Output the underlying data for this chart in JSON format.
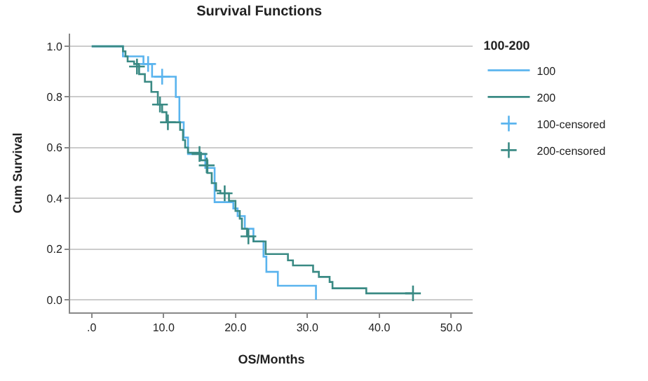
{
  "chart_data": {
    "type": "step",
    "title": "Survival Functions",
    "xlabel": "OS/Months",
    "ylabel": "Cum Survival",
    "legend_title": "100-200",
    "legend": "right",
    "grid": "y",
    "xlim": [
      -3,
      53
    ],
    "ylim": [
      -0.05,
      1.05
    ],
    "xticks": [
      {
        "value": 0,
        "label": ".0"
      },
      {
        "value": 10,
        "label": "10.0"
      },
      {
        "value": 20,
        "label": "20.0"
      },
      {
        "value": 30,
        "label": "30.0"
      },
      {
        "value": 40,
        "label": "40.0"
      },
      {
        "value": 50,
        "label": "50.0"
      }
    ],
    "yticks": [
      {
        "value": 0,
        "label": "0.0"
      },
      {
        "value": 0.2,
        "label": "0.2"
      },
      {
        "value": 0.4,
        "label": "0.4"
      },
      {
        "value": 0.6,
        "label": "0.6"
      },
      {
        "value": 0.8,
        "label": "0.8"
      },
      {
        "value": 1,
        "label": "1.0"
      }
    ],
    "series": [
      {
        "name": "100",
        "color": "#5ab4ee",
        "x": [
          0,
          4.35,
          7.2,
          8.4,
          11.7,
          12.2,
          12.8,
          13.4,
          15.8,
          17.1,
          19.7,
          20.3,
          21.3,
          22.5,
          23.9,
          24.3,
          25.9,
          31.2
        ],
        "values": [
          1.0,
          0.96,
          0.93,
          0.88,
          0.8,
          0.7,
          0.64,
          0.575,
          0.52,
          0.385,
          0.36,
          0.33,
          0.28,
          0.23,
          0.17,
          0.11,
          0.055,
          0
        ]
      },
      {
        "name": "200",
        "color": "#3a8a84",
        "x": [
          0,
          4.35,
          4.7,
          5.0,
          5.9,
          6.6,
          7.4,
          8.3,
          9.2,
          9.8,
          10.4,
          12.3,
          12.7,
          13.0,
          13.4,
          15.2,
          16.1,
          16.7,
          17.3,
          17.9,
          19.1,
          20.0,
          20.6,
          20.9,
          21.6,
          22.5,
          24.2,
          27.3,
          28.0,
          30.8,
          31.6,
          33.1,
          33.5,
          38.2,
          44.7
        ],
        "values": [
          1.0,
          0.98,
          0.96,
          0.94,
          0.93,
          0.89,
          0.86,
          0.82,
          0.77,
          0.74,
          0.7,
          0.67,
          0.63,
          0.6,
          0.58,
          0.55,
          0.5,
          0.46,
          0.43,
          0.42,
          0.39,
          0.35,
          0.32,
          0.28,
          0.25,
          0.23,
          0.18,
          0.155,
          0.135,
          0.11,
          0.09,
          0.07,
          0.045,
          0.025,
          0.025
        ]
      },
      {
        "name": "100-censored",
        "type": "scatter",
        "marker": "cross",
        "color": "#5ab4ee",
        "x": [
          7.85,
          9.8
        ],
        "values": [
          0.93,
          0.88
        ]
      },
      {
        "name": "200-censored",
        "type": "scatter",
        "marker": "cross",
        "color": "#3a8a84",
        "x": [
          6.3,
          9.5,
          10.6,
          15.0,
          16.0,
          18.5,
          21.8,
          44.7
        ],
        "values": [
          0.92,
          0.77,
          0.7,
          0.575,
          0.53,
          0.42,
          0.25,
          0.025
        ]
      }
    ]
  }
}
